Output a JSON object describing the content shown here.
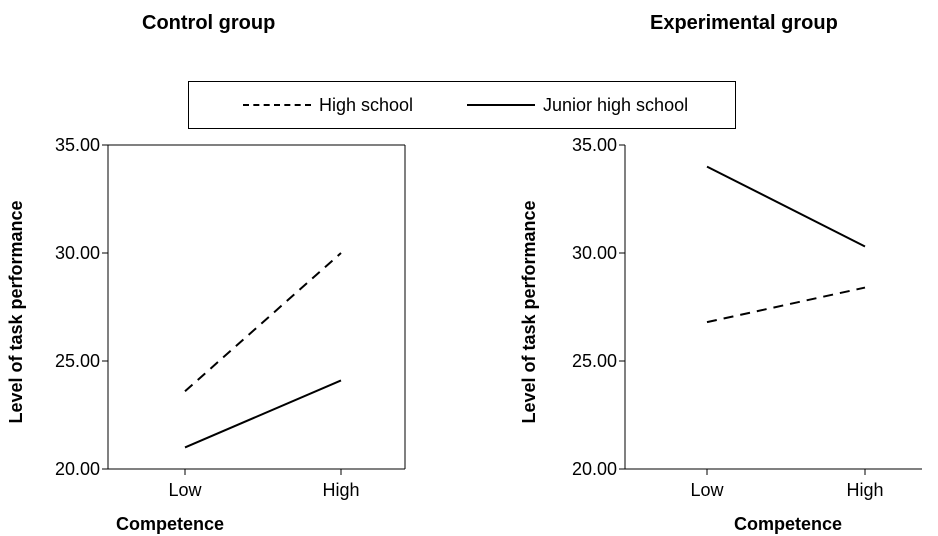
{
  "legend": {
    "items": [
      {
        "label": "High school",
        "style": "dashed"
      },
      {
        "label": "Junior high school",
        "style": "solid"
      }
    ]
  },
  "chart_data": [
    {
      "type": "line",
      "title": "Control group",
      "xlabel": "Competence",
      "ylabel": "Level of task performance",
      "categories": [
        "Low",
        "High"
      ],
      "ylim": [
        20,
        35
      ],
      "yticks": [
        "20.00",
        "25.00",
        "30.00",
        "35.00"
      ],
      "series": [
        {
          "name": "High school",
          "style": "dashed",
          "values": [
            23.6,
            30.0
          ]
        },
        {
          "name": "Junior high school",
          "style": "solid",
          "values": [
            21.0,
            24.1
          ]
        }
      ],
      "frame": "box"
    },
    {
      "type": "line",
      "title": "Experimental group",
      "xlabel": "Competence",
      "ylabel": "Level of task performance",
      "categories": [
        "Low",
        "High"
      ],
      "ylim": [
        20,
        35
      ],
      "yticks": [
        "20.00",
        "25.00",
        "30.00",
        "35.00"
      ],
      "series": [
        {
          "name": "High school",
          "style": "dashed",
          "values": [
            26.8,
            28.4
          ]
        },
        {
          "name": "Junior high school",
          "style": "solid",
          "values": [
            34.0,
            30.3
          ]
        }
      ],
      "frame": "open"
    }
  ]
}
